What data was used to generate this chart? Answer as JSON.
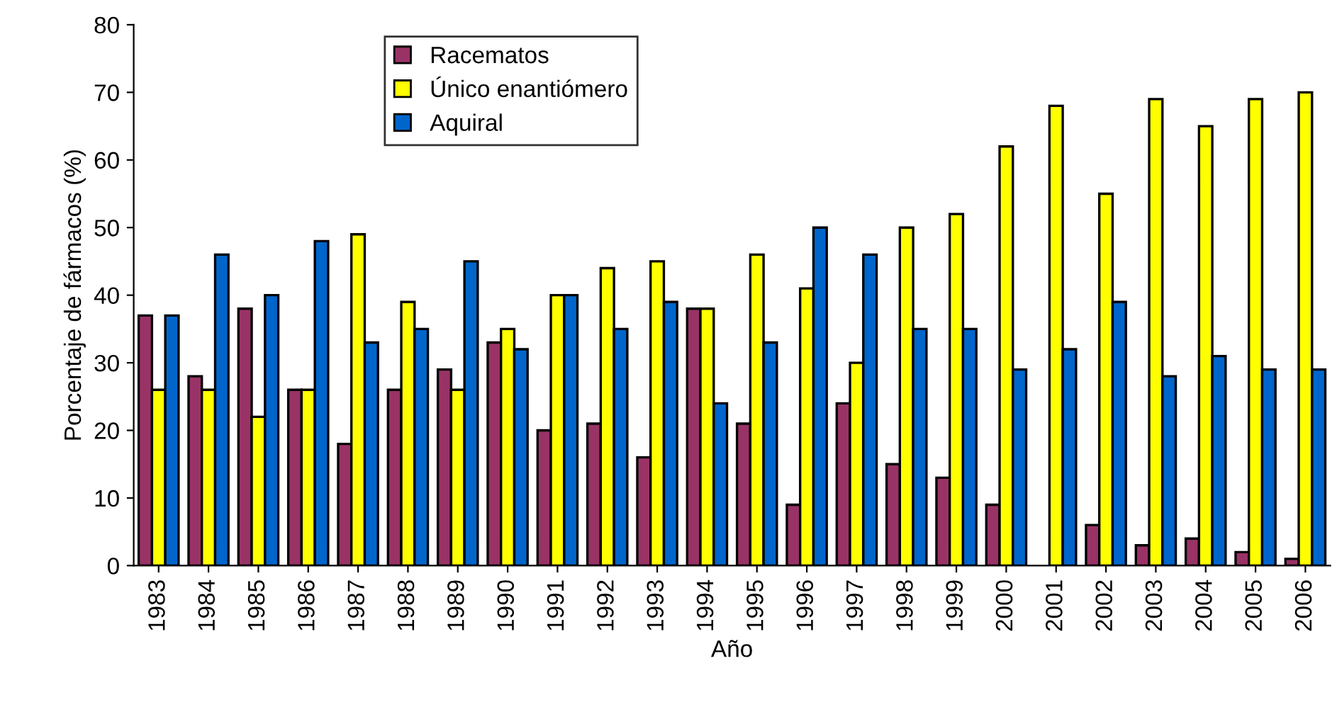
{
  "chart_data": {
    "type": "bar",
    "xlabel": "Año",
    "ylabel": "Porcentaje de fármacos (%)",
    "categories": [
      "1983",
      "1984",
      "1985",
      "1986",
      "1987",
      "1988",
      "1989",
      "1990",
      "1991",
      "1992",
      "1993",
      "1994",
      "1995",
      "1996",
      "1997",
      "1998",
      "1999",
      "2000",
      "2001",
      "2002",
      "2003",
      "2004",
      "2005",
      "2006"
    ],
    "series": [
      {
        "name": "Racematos",
        "color": "#993366",
        "values": [
          37,
          28,
          38,
          26,
          18,
          26,
          29,
          33,
          20,
          21,
          16,
          38,
          21,
          9,
          24,
          15,
          13,
          9,
          null,
          6,
          3,
          4,
          2,
          1
        ]
      },
      {
        "name": "Único enantiómero",
        "color": "#ffff00",
        "values": [
          26,
          26,
          22,
          26,
          49,
          39,
          26,
          35,
          40,
          44,
          45,
          38,
          46,
          41,
          30,
          50,
          52,
          62,
          68,
          55,
          69,
          65,
          69,
          70
        ]
      },
      {
        "name": "Aquiral",
        "color": "#0066cc",
        "values": [
          37,
          46,
          40,
          48,
          33,
          35,
          45,
          32,
          40,
          35,
          39,
          24,
          33,
          50,
          46,
          35,
          35,
          29,
          32,
          39,
          28,
          31,
          29,
          29
        ]
      }
    ],
    "ylim": [
      0,
      80
    ],
    "yticks": [
      0,
      10,
      20,
      30,
      40,
      50,
      60,
      70,
      80
    ],
    "grid": false,
    "legend": "top left"
  }
}
